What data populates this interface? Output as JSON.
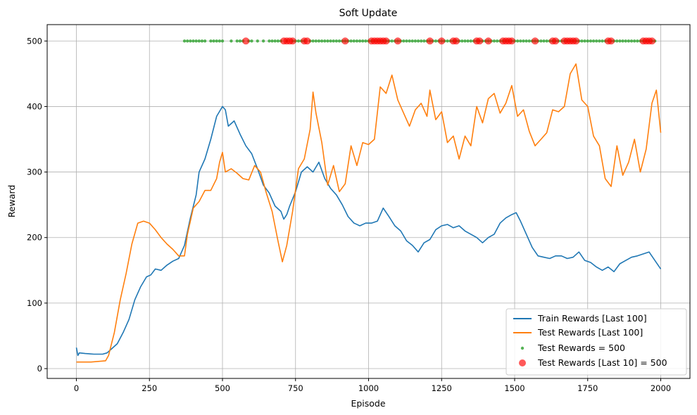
{
  "chart_data": {
    "type": "line",
    "title": "Soft Update",
    "xlabel": "Episode",
    "ylabel": "Reward",
    "xlim": [
      -100,
      2100
    ],
    "ylim": [
      -15,
      525
    ],
    "xticks": [
      0,
      250,
      500,
      750,
      1000,
      1250,
      1500,
      1750,
      2000
    ],
    "yticks": [
      0,
      100,
      200,
      300,
      400,
      500
    ],
    "grid": true,
    "legend_position": "bottom-right",
    "colors": {
      "train": "#1f77b4",
      "test": "#ff7f0e",
      "test500": "#2ca02c",
      "last10": "#ff0000"
    },
    "series": [
      {
        "name": "Train Rewards [Last 100]",
        "kind": "line",
        "points": [
          [
            0,
            32
          ],
          [
            5,
            20
          ],
          [
            10,
            24
          ],
          [
            30,
            23
          ],
          [
            60,
            22
          ],
          [
            90,
            22
          ],
          [
            105,
            24
          ],
          [
            120,
            30
          ],
          [
            140,
            38
          ],
          [
            160,
            55
          ],
          [
            180,
            75
          ],
          [
            200,
            105
          ],
          [
            220,
            125
          ],
          [
            240,
            140
          ],
          [
            255,
            143
          ],
          [
            270,
            152
          ],
          [
            290,
            150
          ],
          [
            310,
            158
          ],
          [
            330,
            164
          ],
          [
            350,
            168
          ],
          [
            370,
            188
          ],
          [
            390,
            230
          ],
          [
            410,
            265
          ],
          [
            420,
            300
          ],
          [
            440,
            320
          ],
          [
            460,
            350
          ],
          [
            480,
            385
          ],
          [
            500,
            400
          ],
          [
            510,
            395
          ],
          [
            520,
            370
          ],
          [
            540,
            378
          ],
          [
            560,
            358
          ],
          [
            580,
            340
          ],
          [
            600,
            328
          ],
          [
            620,
            305
          ],
          [
            640,
            280
          ],
          [
            660,
            268
          ],
          [
            680,
            248
          ],
          [
            700,
            240
          ],
          [
            710,
            228
          ],
          [
            720,
            235
          ],
          [
            730,
            248
          ],
          [
            750,
            270
          ],
          [
            770,
            300
          ],
          [
            790,
            308
          ],
          [
            810,
            300
          ],
          [
            830,
            315
          ],
          [
            850,
            290
          ],
          [
            870,
            275
          ],
          [
            890,
            265
          ],
          [
            910,
            250
          ],
          [
            930,
            232
          ],
          [
            950,
            222
          ],
          [
            970,
            218
          ],
          [
            990,
            222
          ],
          [
            1010,
            222
          ],
          [
            1030,
            225
          ],
          [
            1050,
            245
          ],
          [
            1070,
            232
          ],
          [
            1090,
            218
          ],
          [
            1110,
            210
          ],
          [
            1130,
            195
          ],
          [
            1150,
            188
          ],
          [
            1170,
            178
          ],
          [
            1190,
            192
          ],
          [
            1210,
            197
          ],
          [
            1230,
            212
          ],
          [
            1250,
            218
          ],
          [
            1270,
            220
          ],
          [
            1290,
            215
          ],
          [
            1310,
            218
          ],
          [
            1330,
            210
          ],
          [
            1350,
            205
          ],
          [
            1370,
            200
          ],
          [
            1390,
            192
          ],
          [
            1410,
            200
          ],
          [
            1430,
            205
          ],
          [
            1450,
            222
          ],
          [
            1470,
            230
          ],
          [
            1490,
            235
          ],
          [
            1505,
            238
          ],
          [
            1520,
            225
          ],
          [
            1540,
            205
          ],
          [
            1560,
            185
          ],
          [
            1580,
            172
          ],
          [
            1600,
            170
          ],
          [
            1620,
            168
          ],
          [
            1640,
            172
          ],
          [
            1660,
            172
          ],
          [
            1680,
            168
          ],
          [
            1700,
            170
          ],
          [
            1720,
            178
          ],
          [
            1740,
            165
          ],
          [
            1760,
            162
          ],
          [
            1780,
            155
          ],
          [
            1800,
            150
          ],
          [
            1820,
            155
          ],
          [
            1840,
            148
          ],
          [
            1860,
            160
          ],
          [
            1880,
            165
          ],
          [
            1900,
            170
          ],
          [
            1920,
            172
          ],
          [
            1940,
            175
          ],
          [
            1960,
            178
          ],
          [
            1980,
            165
          ],
          [
            2000,
            152
          ]
        ]
      },
      {
        "name": "Test Rewards [Last 100]",
        "kind": "line",
        "points": [
          [
            0,
            10
          ],
          [
            50,
            10
          ],
          [
            100,
            12
          ],
          [
            110,
            20
          ],
          [
            130,
            55
          ],
          [
            150,
            105
          ],
          [
            170,
            145
          ],
          [
            190,
            190
          ],
          [
            210,
            222
          ],
          [
            230,
            225
          ],
          [
            250,
            222
          ],
          [
            270,
            212
          ],
          [
            290,
            200
          ],
          [
            310,
            190
          ],
          [
            330,
            182
          ],
          [
            350,
            172
          ],
          [
            370,
            172
          ],
          [
            380,
            205
          ],
          [
            400,
            245
          ],
          [
            420,
            255
          ],
          [
            440,
            272
          ],
          [
            460,
            272
          ],
          [
            480,
            290
          ],
          [
            490,
            315
          ],
          [
            500,
            330
          ],
          [
            510,
            300
          ],
          [
            530,
            305
          ],
          [
            550,
            298
          ],
          [
            570,
            290
          ],
          [
            590,
            288
          ],
          [
            610,
            310
          ],
          [
            630,
            300
          ],
          [
            650,
            268
          ],
          [
            670,
            240
          ],
          [
            690,
            195
          ],
          [
            705,
            163
          ],
          [
            720,
            188
          ],
          [
            740,
            240
          ],
          [
            760,
            305
          ],
          [
            780,
            320
          ],
          [
            800,
            365
          ],
          [
            810,
            422
          ],
          [
            820,
            390
          ],
          [
            840,
            345
          ],
          [
            860,
            280
          ],
          [
            880,
            310
          ],
          [
            900,
            270
          ],
          [
            920,
            282
          ],
          [
            940,
            340
          ],
          [
            960,
            310
          ],
          [
            980,
            345
          ],
          [
            1000,
            342
          ],
          [
            1020,
            350
          ],
          [
            1040,
            430
          ],
          [
            1060,
            420
          ],
          [
            1080,
            448
          ],
          [
            1100,
            410
          ],
          [
            1120,
            390
          ],
          [
            1140,
            370
          ],
          [
            1160,
            395
          ],
          [
            1180,
            405
          ],
          [
            1200,
            385
          ],
          [
            1210,
            425
          ],
          [
            1230,
            380
          ],
          [
            1250,
            392
          ],
          [
            1270,
            345
          ],
          [
            1290,
            355
          ],
          [
            1310,
            320
          ],
          [
            1330,
            355
          ],
          [
            1350,
            340
          ],
          [
            1370,
            400
          ],
          [
            1390,
            375
          ],
          [
            1410,
            412
          ],
          [
            1430,
            420
          ],
          [
            1450,
            390
          ],
          [
            1470,
            405
          ],
          [
            1490,
            432
          ],
          [
            1510,
            385
          ],
          [
            1530,
            395
          ],
          [
            1550,
            362
          ],
          [
            1570,
            340
          ],
          [
            1590,
            350
          ],
          [
            1610,
            360
          ],
          [
            1630,
            395
          ],
          [
            1650,
            392
          ],
          [
            1670,
            400
          ],
          [
            1690,
            450
          ],
          [
            1710,
            465
          ],
          [
            1730,
            410
          ],
          [
            1750,
            400
          ],
          [
            1770,
            355
          ],
          [
            1790,
            340
          ],
          [
            1810,
            290
          ],
          [
            1830,
            278
          ],
          [
            1850,
            340
          ],
          [
            1870,
            295
          ],
          [
            1890,
            315
          ],
          [
            1910,
            350
          ],
          [
            1930,
            300
          ],
          [
            1950,
            335
          ],
          [
            1970,
            405
          ],
          [
            1985,
            425
          ],
          [
            2000,
            360
          ]
        ]
      },
      {
        "name": "Test Rewards = 500",
        "kind": "scatter",
        "y": 500,
        "x": [
          370,
          380,
          390,
          400,
          410,
          420,
          430,
          440,
          460,
          470,
          480,
          490,
          500,
          530,
          550,
          560,
          570,
          590,
          600,
          620,
          640,
          660,
          670,
          680,
          690,
          700,
          720,
          740,
          750,
          760,
          770,
          780,
          800,
          810,
          820,
          830,
          840,
          850,
          860,
          870,
          880,
          890,
          900,
          910,
          920,
          930,
          940,
          950,
          960,
          970,
          980,
          990,
          1000,
          1010,
          1020,
          1030,
          1040,
          1050,
          1060,
          1070,
          1080,
          1090,
          1100,
          1110,
          1120,
          1130,
          1140,
          1150,
          1160,
          1170,
          1180,
          1190,
          1200,
          1210,
          1220,
          1230,
          1240,
          1250,
          1260,
          1270,
          1280,
          1290,
          1300,
          1310,
          1320,
          1330,
          1340,
          1350,
          1360,
          1370,
          1380,
          1390,
          1400,
          1410,
          1420,
          1430,
          1440,
          1450,
          1460,
          1470,
          1480,
          1490,
          1500,
          1510,
          1520,
          1530,
          1540,
          1550,
          1560,
          1570,
          1580,
          1590,
          1600,
          1610,
          1620,
          1630,
          1640,
          1650,
          1660,
          1670,
          1680,
          1690,
          1700,
          1710,
          1720,
          1730,
          1740,
          1750,
          1760,
          1770,
          1780,
          1790,
          1800,
          1810,
          1820,
          1830,
          1840,
          1850,
          1860,
          1870,
          1880,
          1890,
          1900,
          1910,
          1920,
          1930,
          1940,
          1950,
          1960,
          1970,
          1980
        ]
      },
      {
        "name": "Test Rewards [Last 10] = 500",
        "kind": "scatter",
        "y": 500,
        "x": [
          580,
          710,
          720,
          730,
          740,
          780,
          790,
          920,
          1010,
          1020,
          1030,
          1040,
          1050,
          1060,
          1100,
          1210,
          1250,
          1290,
          1300,
          1370,
          1380,
          1410,
          1460,
          1470,
          1480,
          1490,
          1570,
          1630,
          1640,
          1670,
          1680,
          1690,
          1700,
          1710,
          1820,
          1830,
          1940,
          1950,
          1960,
          1970
        ]
      }
    ]
  }
}
